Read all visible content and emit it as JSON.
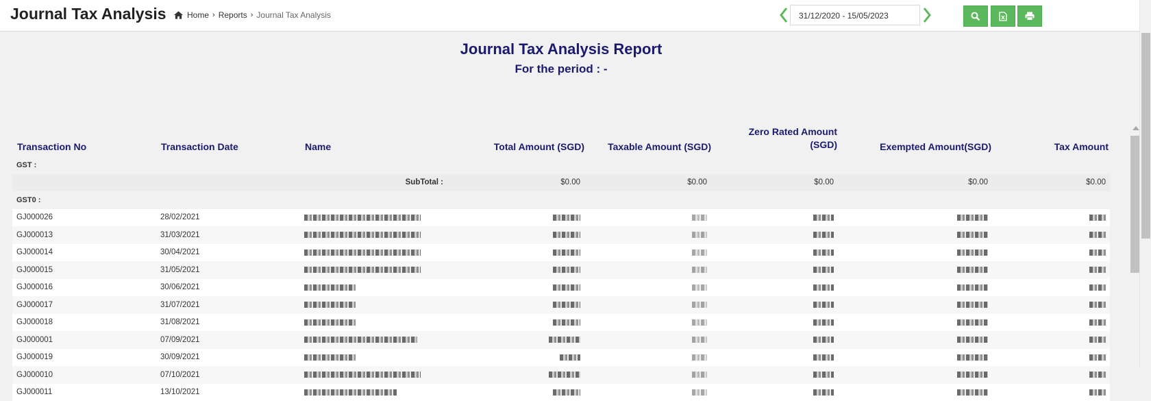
{
  "header": {
    "title": "Journal Tax Analysis",
    "breadcrumb": {
      "home": "Home",
      "reports": "Reports",
      "current": "Journal Tax Analysis"
    },
    "date_range": "31/12/2020 - 15/05/2023",
    "buttons": [
      "search-icon",
      "excel-export-icon",
      "print-icon"
    ],
    "accent": "#5cb85c"
  },
  "report": {
    "title": "Journal Tax Analysis Report",
    "period": "For the period : -",
    "columns": {
      "transaction_no": "Transaction No",
      "transaction_date": "Transaction Date",
      "name": "Name",
      "total_amount": "Total Amount (SGD)",
      "taxable_amount": "Taxable Amount (SGD)",
      "zero_rated_line1": "Zero Rated Amount",
      "zero_rated_line2": "(SGD)",
      "exempted_amount": "Exempted Amount(SGD)",
      "tax_amount": "Tax Amount"
    },
    "group_gst": "GST :",
    "subtotal_label": "SubTotal :",
    "subtotal_values": [
      "$0.00",
      "$0.00",
      "$0.00",
      "$0.00",
      "$0.00"
    ],
    "group_gst0": "GST0 :",
    "rows": [
      {
        "no": "GJ000026",
        "date": "28/02/2021"
      },
      {
        "no": "GJ000013",
        "date": "31/03/2021"
      },
      {
        "no": "GJ000014",
        "date": "30/04/2021"
      },
      {
        "no": "GJ000015",
        "date": "31/05/2021"
      },
      {
        "no": "GJ000016",
        "date": "30/06/2021"
      },
      {
        "no": "GJ000017",
        "date": "31/07/2021"
      },
      {
        "no": "GJ000018",
        "date": "31/08/2021"
      },
      {
        "no": "GJ000001",
        "date": "07/09/2021"
      },
      {
        "no": "GJ000019",
        "date": "30/09/2021"
      },
      {
        "no": "GJ000010",
        "date": "07/10/2021"
      },
      {
        "no": "GJ000011",
        "date": "13/10/2021"
      }
    ]
  }
}
